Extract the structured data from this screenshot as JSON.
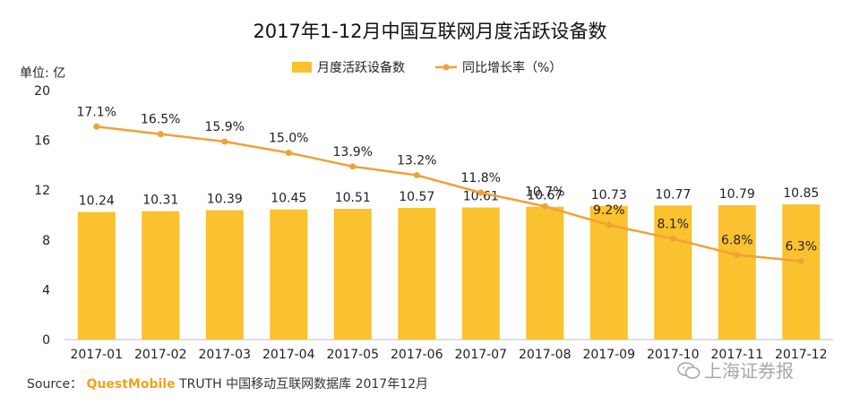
{
  "chart_data": {
    "type": "bar",
    "title": "2017年1-12月中国互联网月度活跃设备数",
    "unit_label": "单位: 亿",
    "categories": [
      "2017-01",
      "2017-02",
      "2017-03",
      "2017-04",
      "2017-05",
      "2017-06",
      "2017-07",
      "2017-08",
      "2017-09",
      "2017-10",
      "2017-11",
      "2017-12"
    ],
    "category_labels": [
      "2017-01",
      "2017-02",
      "2017-03",
      "2017-04",
      "2017-05",
      "2017-06",
      "2017-07",
      "2017-08",
      "2017-09",
      "2017-10",
      "2017-11",
      "2017-12"
    ],
    "series": [
      {
        "name": "月度活跃设备数",
        "type": "bar",
        "color": "#f9c22e",
        "values": [
          10.24,
          10.31,
          10.39,
          10.45,
          10.51,
          10.57,
          10.61,
          10.67,
          10.73,
          10.77,
          10.79,
          10.85
        ],
        "labels": [
          "10.24",
          "10.31",
          "10.39",
          "10.45",
          "10.51",
          "10.57",
          "10.61",
          "10.67",
          "10.73",
          "10.77",
          "10.79",
          "10.85"
        ]
      },
      {
        "name": "同比增长率（%）",
        "type": "line",
        "color": "#f0a13a",
        "values": [
          17.1,
          16.5,
          15.9,
          15.0,
          13.9,
          13.2,
          11.8,
          10.7,
          9.2,
          8.1,
          6.8,
          6.3
        ],
        "labels": [
          "17.1%",
          "16.5%",
          "15.9%",
          "15.0%",
          "13.9%",
          "13.2%",
          "11.8%",
          "10.7%",
          "9.2%",
          "8.1%",
          "6.8%",
          "6.3%"
        ]
      }
    ],
    "yticks": [
      0,
      4,
      8,
      12,
      16,
      20
    ],
    "ylim": [
      0,
      20
    ],
    "legend_position": "top-center"
  },
  "source": {
    "prefix": "Source：",
    "brand": "QuestMobile",
    "rest": "TRUTH 中国移动互联网数据库 2017年12月"
  },
  "watermark": {
    "text": "上海证券报"
  }
}
